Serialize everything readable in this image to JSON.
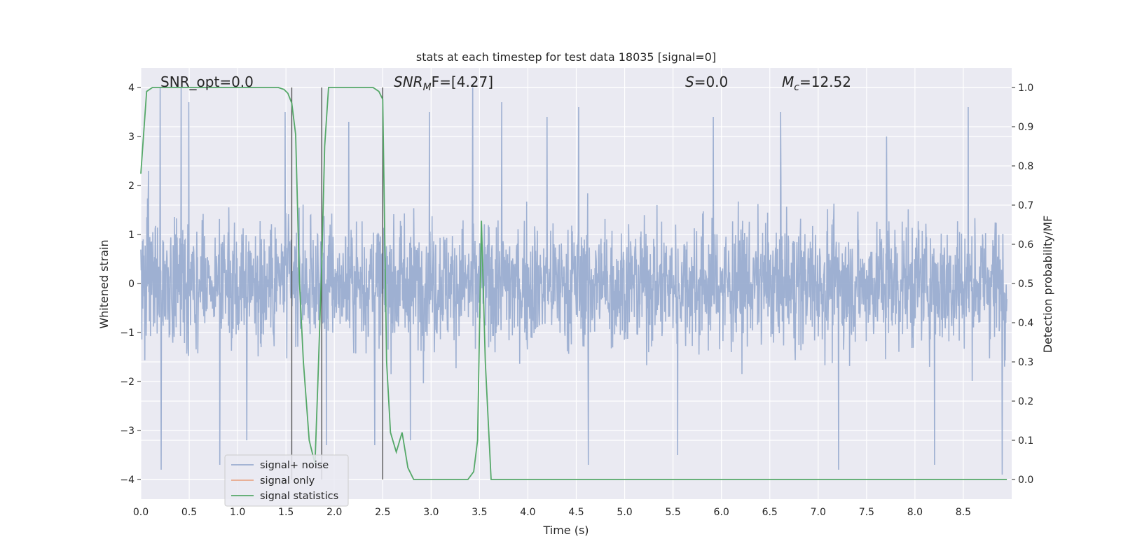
{
  "chart_data": {
    "type": "line",
    "title": "stats at each timestep for test data 18035 [signal=0]",
    "xlabel": "Time (s)",
    "ylabel": "Whitened strain",
    "ylabel_right": "Detection probability/MF",
    "xlim": [
      0.0,
      9.0
    ],
    "ylim": [
      -4.4,
      4.4
    ],
    "ylim_right": [
      -0.05,
      1.05
    ],
    "x_ticks": [
      "0.0",
      "0.5",
      "1.0",
      "1.5",
      "2.0",
      "2.5",
      "3.0",
      "3.5",
      "4.0",
      "4.5",
      "5.0",
      "5.5",
      "6.0",
      "6.5",
      "7.0",
      "7.5",
      "8.0",
      "8.5"
    ],
    "y_ticks": [
      "4",
      "3",
      "2",
      "1",
      "0",
      "−1",
      "−2",
      "−3",
      "−4"
    ],
    "y_ticks_right": [
      "1.0",
      "0.9",
      "0.8",
      "0.7",
      "0.6",
      "0.5",
      "0.4",
      "0.3",
      "0.2",
      "0.1",
      "0.0"
    ],
    "grid": true,
    "legend_position": "lower-left",
    "annotations": {
      "snr_opt": "SNR_opt=0.0",
      "snr_mf_main": "SNR",
      "snr_mf_sub": "M",
      "snr_mf_rest": "F=[4.27]",
      "s_main": "S",
      "s_rest": "=0.0",
      "mc_main": "M",
      "mc_sub": "c",
      "mc_rest": "=12.52"
    },
    "vertical_lines": [
      1.56,
      1.87,
      2.5
    ],
    "series": [
      {
        "name": "signal+ noise",
        "color": "#9aadd0",
        "axis": "left",
        "style": "dense noise trace",
        "typical_range": [
          -2.4,
          2.4
        ],
        "peaks": [
          {
            "x": 0.08,
            "y": 2.3
          },
          {
            "x": 0.2,
            "y": 4.0
          },
          {
            "x": 0.21,
            "y": -3.8
          },
          {
            "x": 0.42,
            "y": 4.0
          },
          {
            "x": 0.5,
            "y": 3.7
          },
          {
            "x": 0.82,
            "y": -3.7
          },
          {
            "x": 1.1,
            "y": -3.2
          },
          {
            "x": 1.5,
            "y": 3.5
          },
          {
            "x": 1.93,
            "y": -3.3
          },
          {
            "x": 2.16,
            "y": 3.3
          },
          {
            "x": 2.43,
            "y": -3.3
          },
          {
            "x": 2.8,
            "y": -3.2
          },
          {
            "x": 3.0,
            "y": 3.5
          },
          {
            "x": 3.45,
            "y": 4.0
          },
          {
            "x": 3.75,
            "y": 3.7
          },
          {
            "x": 4.22,
            "y": 3.4
          },
          {
            "x": 4.55,
            "y": 3.6
          },
          {
            "x": 4.65,
            "y": -3.7
          },
          {
            "x": 5.58,
            "y": -3.5
          },
          {
            "x": 5.95,
            "y": 3.4
          },
          {
            "x": 6.65,
            "y": 3.5
          },
          {
            "x": 7.25,
            "y": -3.8
          },
          {
            "x": 7.75,
            "y": 3.0
          },
          {
            "x": 8.25,
            "y": -3.7
          },
          {
            "x": 8.6,
            "y": 3.6
          },
          {
            "x": 8.95,
            "y": -3.9
          }
        ]
      },
      {
        "name": "signal only",
        "color": "#e8a88a",
        "axis": "left",
        "x": [],
        "y": []
      },
      {
        "name": "signal statistics",
        "color": "#55a868",
        "axis": "right",
        "x": [
          0.0,
          0.06,
          0.12,
          0.2,
          0.5,
          1.0,
          1.3,
          1.42,
          1.48,
          1.52,
          1.56,
          1.6,
          1.64,
          1.68,
          1.74,
          1.8,
          1.83,
          1.87,
          1.9,
          1.94,
          2.0,
          2.2,
          2.4,
          2.46,
          2.5,
          2.54,
          2.58,
          2.64,
          2.7,
          2.76,
          2.82,
          2.9,
          3.0,
          3.2,
          3.38,
          3.44,
          3.48,
          3.52,
          3.56,
          3.62,
          3.7,
          4.0,
          5.0,
          6.0,
          7.0,
          8.0,
          8.95
        ],
        "y": [
          0.78,
          0.99,
          1.0,
          1.0,
          1.0,
          1.0,
          1.0,
          1.0,
          0.995,
          0.985,
          0.96,
          0.88,
          0.5,
          0.3,
          0.1,
          0.04,
          0.25,
          0.55,
          0.85,
          1.0,
          1.0,
          1.0,
          1.0,
          0.99,
          0.97,
          0.3,
          0.12,
          0.07,
          0.12,
          0.03,
          0.0,
          0.0,
          0.0,
          0.0,
          0.0,
          0.02,
          0.1,
          0.66,
          0.3,
          0.0,
          0.0,
          0.0,
          0.0,
          0.0,
          0.0,
          0.0,
          0.0
        ]
      }
    ]
  }
}
